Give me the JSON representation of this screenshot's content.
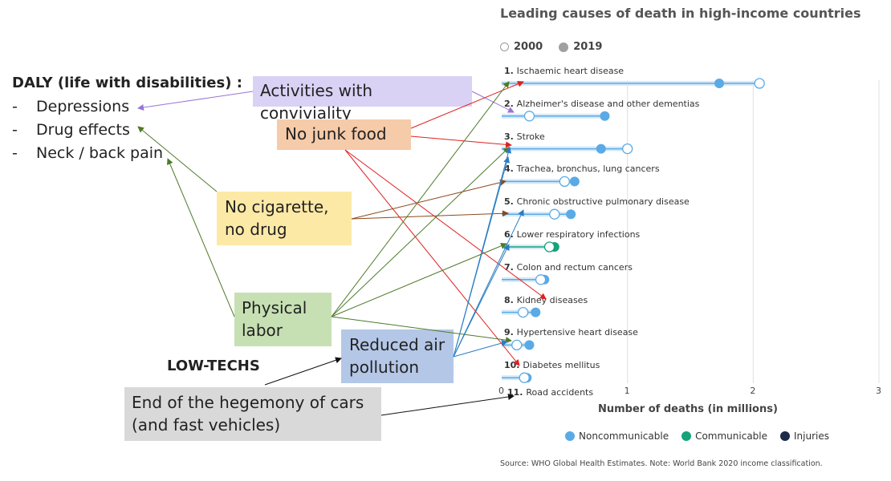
{
  "daly": {
    "title": "DALY (life with disabilities) :",
    "items": [
      "Depressions",
      "Drug effects",
      "Neck / back pain"
    ],
    "dash": "-"
  },
  "boxes": {
    "conviviality": "Activities with conviviality",
    "junk_food": "No junk food",
    "cigarette": "No cigarette, no drug",
    "physical": "Physical labor",
    "air": "Reduced air pollution",
    "cars": "End of the hegemony of cars (and fast vehicles)",
    "low_techs": "LOW-TECHS"
  },
  "colors": {
    "conviviality_bg": "#d9d2f5",
    "junk_food_bg": "#f6cba9",
    "cigarette_bg": "#fde9a6",
    "physical_bg": "#c7e0b3",
    "air_bg": "#b4c7e7",
    "cars_bg": "#d9d9d9",
    "noncommunicable": "#5aaae6",
    "communicable": "#17a37a",
    "injuries": "#1c2b4a"
  },
  "chart_data": {
    "type": "dot",
    "title": "Leading causes of death in high-income countries",
    "xlabel": "Number of deaths (in millions)",
    "xlim": [
      0,
      3
    ],
    "xticks": [
      "0",
      "1",
      "2",
      "3"
    ],
    "series_years": [
      "2000",
      "2019"
    ],
    "categories": [
      {
        "rank": "1.",
        "name": "Ischaemic heart disease",
        "v2000": 2.05,
        "v2019": 1.73,
        "group": "noncommunicable"
      },
      {
        "rank": "2.",
        "name": "Alzheimer's disease and other dementias",
        "v2000": 0.22,
        "v2019": 0.82,
        "group": "noncommunicable"
      },
      {
        "rank": "3.",
        "name": "Stroke",
        "v2000": 1.0,
        "v2019": 0.79,
        "group": "noncommunicable"
      },
      {
        "rank": "4.",
        "name": "Trachea, bronchus, lung cancers",
        "v2000": 0.5,
        "v2019": 0.58,
        "group": "noncommunicable"
      },
      {
        "rank": "5.",
        "name": "Chronic obstructive pulmonary disease",
        "v2000": 0.42,
        "v2019": 0.55,
        "group": "noncommunicable"
      },
      {
        "rank": "6.",
        "name": "Lower respiratory infections",
        "v2000": 0.38,
        "v2019": 0.42,
        "group": "communicable"
      },
      {
        "rank": "7.",
        "name": "Colon and rectum cancers",
        "v2000": 0.31,
        "v2019": 0.34,
        "group": "noncommunicable"
      },
      {
        "rank": "8.",
        "name": "Kidney diseases",
        "v2000": 0.17,
        "v2019": 0.27,
        "group": "noncommunicable"
      },
      {
        "rank": "9.",
        "name": "Hypertensive heart disease",
        "v2000": 0.12,
        "v2019": 0.22,
        "group": "noncommunicable"
      },
      {
        "rank": "10.",
        "name": "Diabetes mellitus",
        "v2000": 0.18,
        "v2019": 0.2,
        "group": "noncommunicable"
      },
      {
        "rank": "11.",
        "name": "Road accidents",
        "v2000": null,
        "v2019": null,
        "group": "injuries"
      }
    ],
    "legend": [
      "Noncommunicable",
      "Communicable",
      "Injuries"
    ],
    "source": "Source: WHO Global Health Estimates. Note: World Bank 2020 income classification."
  }
}
